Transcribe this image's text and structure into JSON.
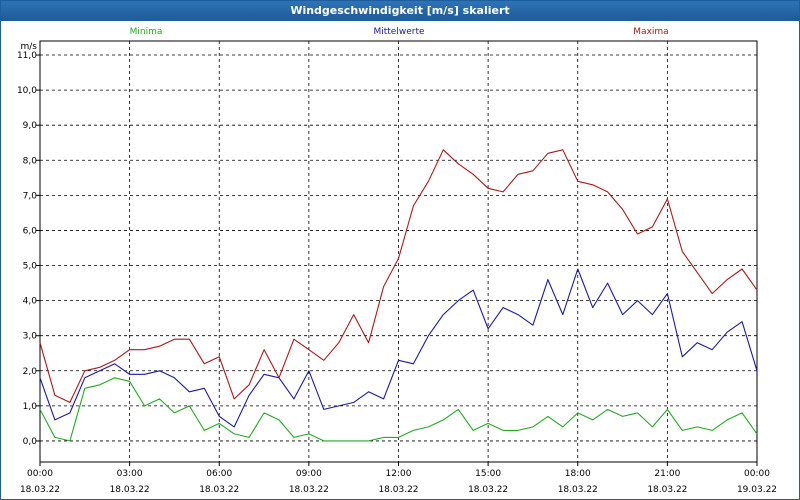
{
  "window": {
    "title": "Windgeschwindigkeit [m/s] skaliert"
  },
  "chart_data": {
    "type": "line",
    "title": "Windgeschwindigkeit [m/s] skaliert",
    "ylabel": "m/s",
    "ylim": [
      -0.6,
      11.4
    ],
    "xlim": [
      0,
      24
    ],
    "yticks": [
      "0,0",
      "1,0",
      "2,0",
      "3,0",
      "4,0",
      "5,0",
      "6,0",
      "7,0",
      "8,0",
      "9,0",
      "10,0",
      "11,0"
    ],
    "yticks_values": [
      0,
      1,
      2,
      3,
      4,
      5,
      6,
      7,
      8,
      9,
      10,
      11
    ],
    "xticks": [
      {
        "hour": 0,
        "time": "00:00",
        "date": "18.03.22"
      },
      {
        "hour": 3,
        "time": "03:00",
        "date": "18.03.22"
      },
      {
        "hour": 6,
        "time": "06:00",
        "date": "18.03.22"
      },
      {
        "hour": 9,
        "time": "09:00",
        "date": "18.03.22"
      },
      {
        "hour": 12,
        "time": "12:00",
        "date": "18.03.22"
      },
      {
        "hour": 15,
        "time": "15:00",
        "date": "18.03.22"
      },
      {
        "hour": 18,
        "time": "18:00",
        "date": "18.03.22"
      },
      {
        "hour": 21,
        "time": "21:00",
        "date": "18.03.22"
      },
      {
        "hour": 24,
        "time": "00:00",
        "date": "19.03.22"
      }
    ],
    "grid": true,
    "legend_position": "top",
    "x_hours": [
      0,
      0.5,
      1,
      1.5,
      2,
      2.5,
      3,
      3.5,
      4,
      4.5,
      5,
      5.5,
      6,
      6.5,
      7,
      7.5,
      8,
      8.5,
      9,
      9.5,
      10,
      10.5,
      11,
      11.5,
      12,
      12.5,
      13,
      13.5,
      14,
      14.5,
      15,
      15.5,
      16,
      16.5,
      17,
      17.5,
      18,
      18.5,
      19,
      19.5,
      20,
      20.5,
      21,
      21.5,
      22,
      22.5,
      23,
      23.5,
      24
    ],
    "series": [
      {
        "name": "Minima",
        "color": "#22aa22",
        "values": [
          0.9,
          0.1,
          0.0,
          1.5,
          1.6,
          1.8,
          1.7,
          1.0,
          1.2,
          0.8,
          1.0,
          0.3,
          0.5,
          0.2,
          0.1,
          0.8,
          0.6,
          0.1,
          0.2,
          0.0,
          0.0,
          0.0,
          0.0,
          0.1,
          0.1,
          0.3,
          0.4,
          0.6,
          0.9,
          0.3,
          0.5,
          0.3,
          0.3,
          0.4,
          0.7,
          0.4,
          0.8,
          0.6,
          0.9,
          0.7,
          0.8,
          0.4,
          0.9,
          0.3,
          0.4,
          0.3,
          0.6,
          0.8,
          0.2
        ]
      },
      {
        "name": "Mittelwerte",
        "color": "#1a1aa8",
        "values": [
          1.8,
          0.6,
          0.8,
          1.8,
          2.0,
          2.2,
          1.9,
          1.9,
          2.0,
          1.8,
          1.4,
          1.5,
          0.7,
          0.4,
          1.3,
          1.9,
          1.8,
          1.2,
          2.0,
          0.9,
          1.0,
          1.1,
          1.4,
          1.2,
          2.3,
          2.2,
          3.0,
          3.6,
          4.0,
          4.3,
          3.2,
          3.8,
          3.6,
          3.3,
          4.6,
          3.6,
          4.9,
          3.8,
          4.5,
          3.6,
          4.0,
          3.6,
          4.2,
          2.4,
          2.8,
          2.6,
          3.1,
          3.4,
          2.0
        ]
      },
      {
        "name": "Maxima",
        "color": "#aa1a1a",
        "values": [
          2.8,
          1.3,
          1.1,
          2.0,
          2.1,
          2.3,
          2.6,
          2.6,
          2.7,
          2.9,
          2.9,
          2.2,
          2.4,
          1.2,
          1.6,
          2.6,
          1.8,
          2.9,
          2.6,
          2.3,
          2.8,
          3.6,
          2.8,
          4.4,
          5.2,
          6.7,
          7.4,
          8.3,
          7.9,
          7.6,
          7.2,
          7.1,
          7.6,
          7.7,
          8.2,
          8.3,
          7.4,
          7.3,
          7.1,
          6.6,
          5.9,
          6.1,
          6.9,
          5.4,
          4.8,
          4.2,
          4.6,
          4.9,
          4.3
        ]
      }
    ]
  }
}
